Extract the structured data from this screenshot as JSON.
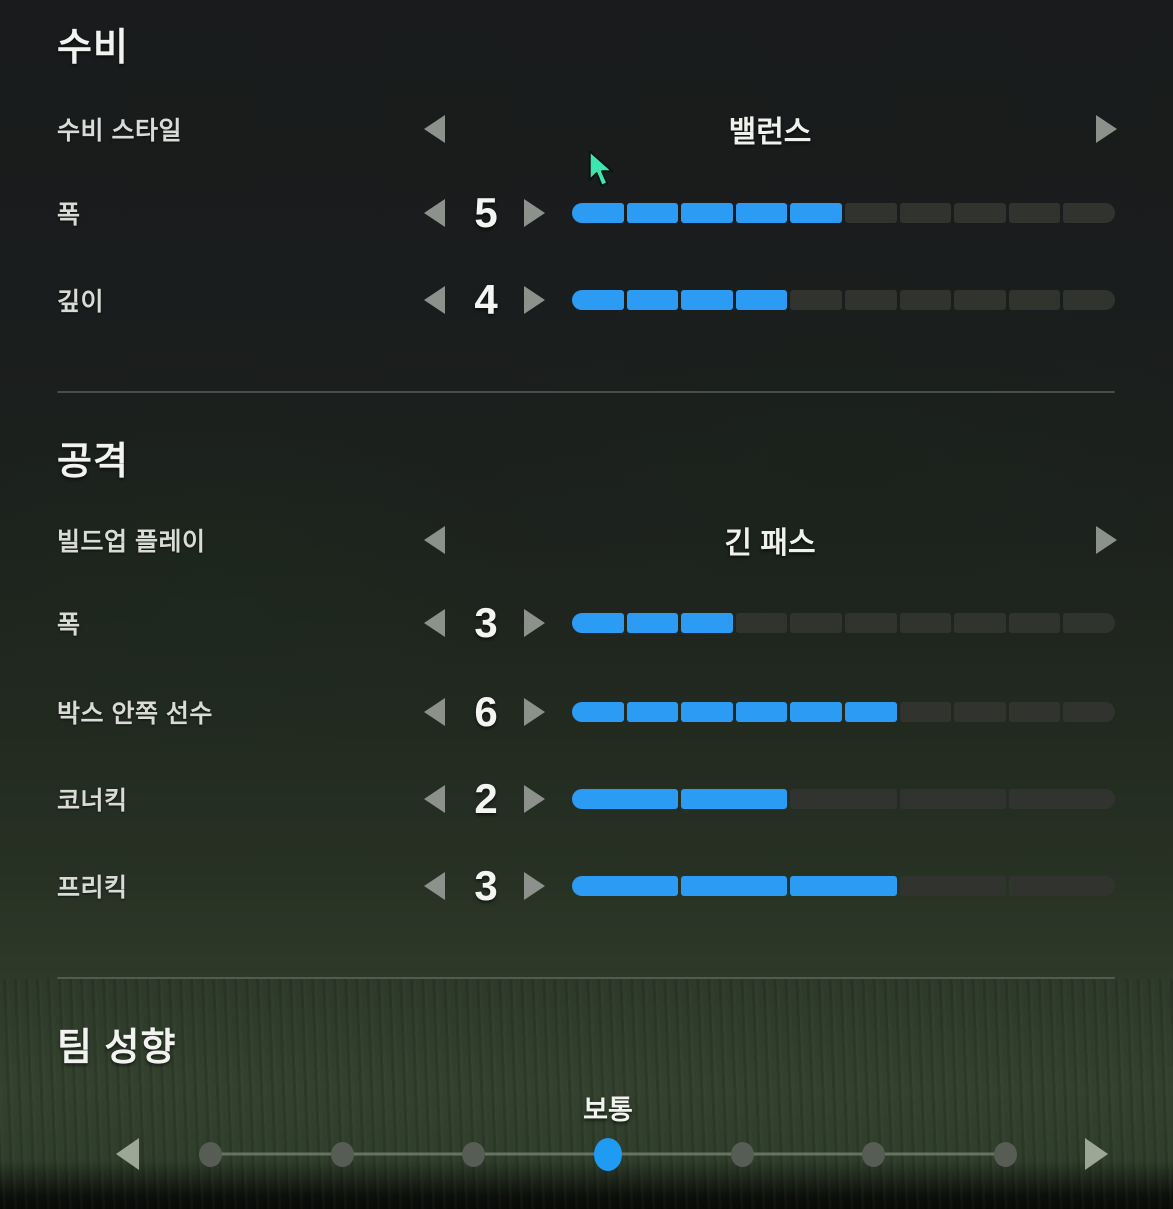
{
  "colors": {
    "accent_blue": "#2B9BF3",
    "bar_empty": "#31342E",
    "arrow_gray": "#8D918C",
    "slider_arrow_gray": "#9DA795",
    "slider_dot_gray": "#575C55",
    "cursor_green": "#3CE6AE"
  },
  "sections": {
    "defense": {
      "title": "수비",
      "rows": [
        {
          "label": "수비 스타일",
          "type": "choice",
          "value": "밸런스"
        },
        {
          "label": "폭",
          "type": "stepper",
          "value": 5,
          "max": 10
        },
        {
          "label": "깊이",
          "type": "stepper",
          "value": 4,
          "max": 10
        }
      ]
    },
    "attack": {
      "title": "공격",
      "rows": [
        {
          "label": "빌드업 플레이",
          "type": "choice",
          "value": "긴 패스"
        },
        {
          "label": "폭",
          "type": "stepper",
          "value": 3,
          "max": 10
        },
        {
          "label": "박스 안쪽 선수",
          "type": "stepper",
          "value": 6,
          "max": 10
        },
        {
          "label": "코너킥",
          "type": "stepper",
          "value": 2,
          "max": 5
        },
        {
          "label": "프리킥",
          "type": "stepper",
          "value": 3,
          "max": 5
        }
      ]
    },
    "mentality": {
      "title": "팀 성향",
      "slider": {
        "value_label": "보통",
        "steps": 7,
        "selected_index": 3
      }
    }
  }
}
